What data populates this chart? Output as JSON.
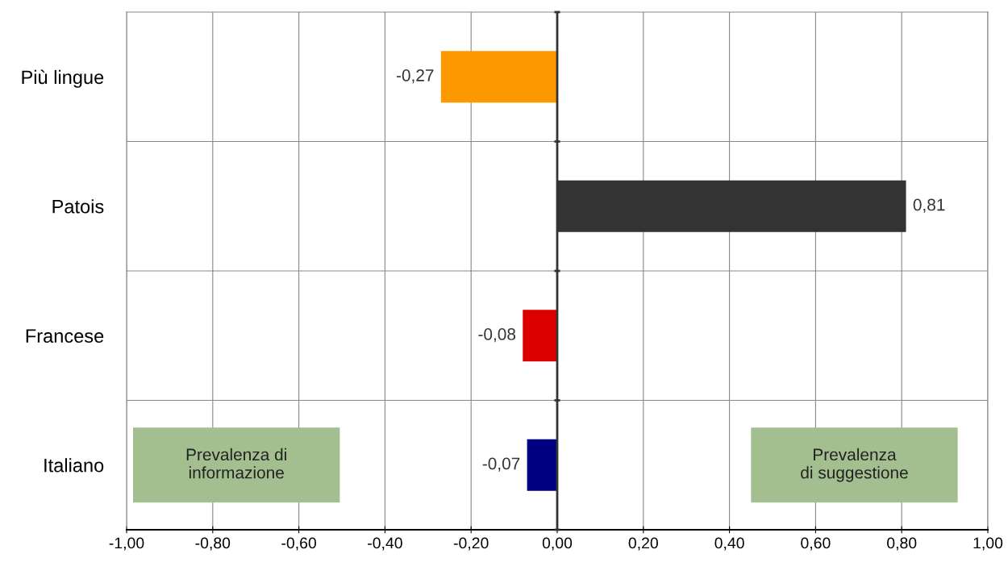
{
  "chart_data": {
    "type": "bar",
    "orientation": "horizontal",
    "categories": [
      "Più lingue",
      "Patois",
      "Francese",
      "Italiano"
    ],
    "values": [
      -0.27,
      0.81,
      -0.08,
      -0.07
    ],
    "colors": [
      "#ff9900",
      "#333333",
      "#dd0000",
      "#000080"
    ],
    "value_labels": [
      "-0,27",
      "0,81",
      "-0,08",
      "-0,07"
    ],
    "xlim": [
      -1,
      1
    ],
    "xticks": [
      {
        "value": -1,
        "label": "-1,00"
      },
      {
        "value": -0.8,
        "label": "-0,80"
      },
      {
        "value": -0.6,
        "label": "-0,60"
      },
      {
        "value": -0.4,
        "label": "-0,40"
      },
      {
        "value": -0.2,
        "label": "-0,20"
      },
      {
        "value": 0,
        "label": "0,00"
      },
      {
        "value": 0.2,
        "label": "0,20"
      },
      {
        "value": 0.4,
        "label": "0,40"
      },
      {
        "value": 0.6,
        "label": "0,60"
      },
      {
        "value": 0.8,
        "label": "0,80"
      },
      {
        "value": 1,
        "label": "1,00"
      }
    ],
    "grid": true,
    "annotations": [
      "Prevalenza di\ninformazione",
      "Prevalenza\ndi suggestione"
    ]
  }
}
